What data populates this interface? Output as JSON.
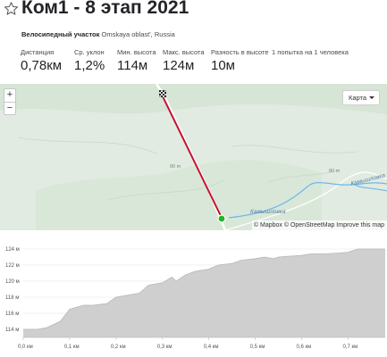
{
  "header": {
    "title": "Ком1 - 8 этап 2021",
    "segment_type": "Велосипедный участок",
    "location": "Omskaya oblast', Russia"
  },
  "stats": [
    {
      "label": "Дистанция",
      "value": "0,78км"
    },
    {
      "label": "Ср. уклон",
      "value": "1,2%"
    },
    {
      "label": "Мин. высота",
      "value": "114м"
    },
    {
      "label": "Макс. высота",
      "value": "124м"
    },
    {
      "label": "Разность в высоте",
      "value": "10м"
    }
  ],
  "attempts_note": "1 попытка на 1 человека",
  "map": {
    "zoom_in": "+",
    "zoom_out": "−",
    "map_type": "Карта",
    "attribution": "© Mapbox © OpenStreetMap Improve this map",
    "contour_labels": [
      "90 m",
      "80 m"
    ],
    "river_label": "Камышловка",
    "river_label_2": "Камышловка",
    "colors": {
      "route": "#c8102e",
      "start": "#21b427",
      "water": "#6fb8e8",
      "land": "#e1ebe1"
    }
  },
  "chart_data": {
    "type": "area",
    "xlabel": "",
    "ylabel": "",
    "x_ticks": [
      "0,0 км",
      "0,1 км",
      "0,2 км",
      "0,3 км",
      "0,4 км",
      "0,5 км",
      "0,6 км",
      "0,7 км"
    ],
    "y_ticks": [
      "114 м",
      "116 м",
      "118 м",
      "120 м",
      "122 м",
      "124 м"
    ],
    "xlim": [
      0,
      0.78
    ],
    "ylim": [
      113,
      125
    ],
    "x": [
      0,
      0.03,
      0.05,
      0.08,
      0.1,
      0.13,
      0.15,
      0.18,
      0.2,
      0.22,
      0.25,
      0.27,
      0.28,
      0.3,
      0.32,
      0.33,
      0.35,
      0.37,
      0.4,
      0.42,
      0.45,
      0.47,
      0.5,
      0.52,
      0.54,
      0.55,
      0.57,
      0.6,
      0.62,
      0.65,
      0.68,
      0.7,
      0.72,
      0.75,
      0.78
    ],
    "y": [
      114,
      114,
      114.2,
      115,
      116.5,
      117,
      117,
      117.2,
      118,
      118.2,
      118.5,
      119.5,
      119.6,
      119.8,
      120.5,
      120,
      120.8,
      121.2,
      121.5,
      122,
      122.2,
      122.6,
      122.8,
      123,
      122.8,
      123,
      123.1,
      123.2,
      123.4,
      123.4,
      123.5,
      123.6,
      124,
      124,
      124
    ],
    "colors": {
      "fill": "#cfcfcf",
      "line": "#b8b8b8"
    }
  }
}
